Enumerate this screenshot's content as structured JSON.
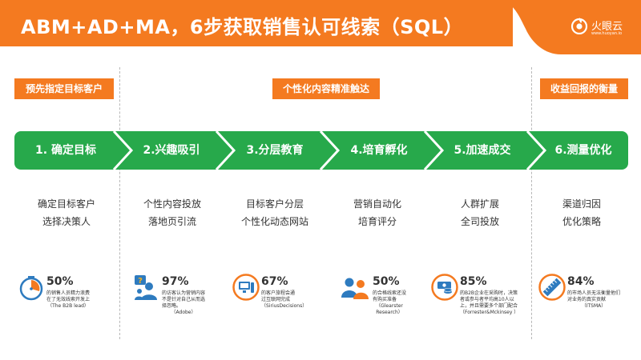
{
  "title": "ABM+AD+MA，6步获取销售认可线索（SQL）",
  "brand": {
    "name": "火眼云",
    "url": "www.huoyan.io"
  },
  "colors": {
    "orange": "#f47a20",
    "green": "#27a94b",
    "blue": "#2e7bbf"
  },
  "phases": [
    {
      "label": "预先指定目标客户"
    },
    {
      "label": "个性化内容精准触达"
    },
    {
      "label": "收益回报的衡量"
    }
  ],
  "steps": [
    {
      "label": "1. 确定目标",
      "desc": [
        "确定目标客户",
        "选择决策人"
      ]
    },
    {
      "label": "2.兴趣吸引",
      "desc": [
        "个性内容投放",
        "落地页引流"
      ]
    },
    {
      "label": "3.分层教育",
      "desc": [
        "目标客户分层",
        "个性化动态网站"
      ]
    },
    {
      "label": "4.培育孵化",
      "desc": [
        "营销自动化",
        "培育评分"
      ]
    },
    {
      "label": "5.加速成交",
      "desc": [
        "人群扩展",
        "全司投放"
      ]
    },
    {
      "label": "6.测量优化",
      "desc": [
        "渠道归因",
        "优化策略"
      ]
    }
  ],
  "stats": [
    {
      "icon": "stopwatch-icon",
      "value": "50%",
      "lines": [
        "的销售人员精力浪费",
        "在了无效线索开发上"
      ],
      "source": "（The B2B lead）"
    },
    {
      "icon": "user-question-icon",
      "value": "97%",
      "lines": [
        "的访客认为营销内容",
        "不是针对自己从而选",
        "择忽略。"
      ],
      "source": "（Adobe）"
    },
    {
      "icon": "computer-icon",
      "value": "67%",
      "lines": [
        "的客户旅程会通",
        "过互联网完成"
      ],
      "source": "（SiriusDecisions）"
    },
    {
      "icon": "people-icon",
      "value": "50%",
      "lines": [
        "的合格线索还没",
        "有购买准备"
      ],
      "source": "（Glearster",
      "source2": "Research）"
    },
    {
      "icon": "money-icon",
      "value": "85%",
      "lines": [
        "的B2B企业在采购时，决策",
        "者或参与者平均高10人以",
        "上，并且需要多个部门配合"
      ],
      "source": "（Forrester&Mckinsey ）"
    },
    {
      "icon": "ruler-icon",
      "value": "84%",
      "lines": [
        "的市场人员无法衡量他们",
        "对业务的真实贡献"
      ],
      "source": "（ITSMA）"
    }
  ]
}
